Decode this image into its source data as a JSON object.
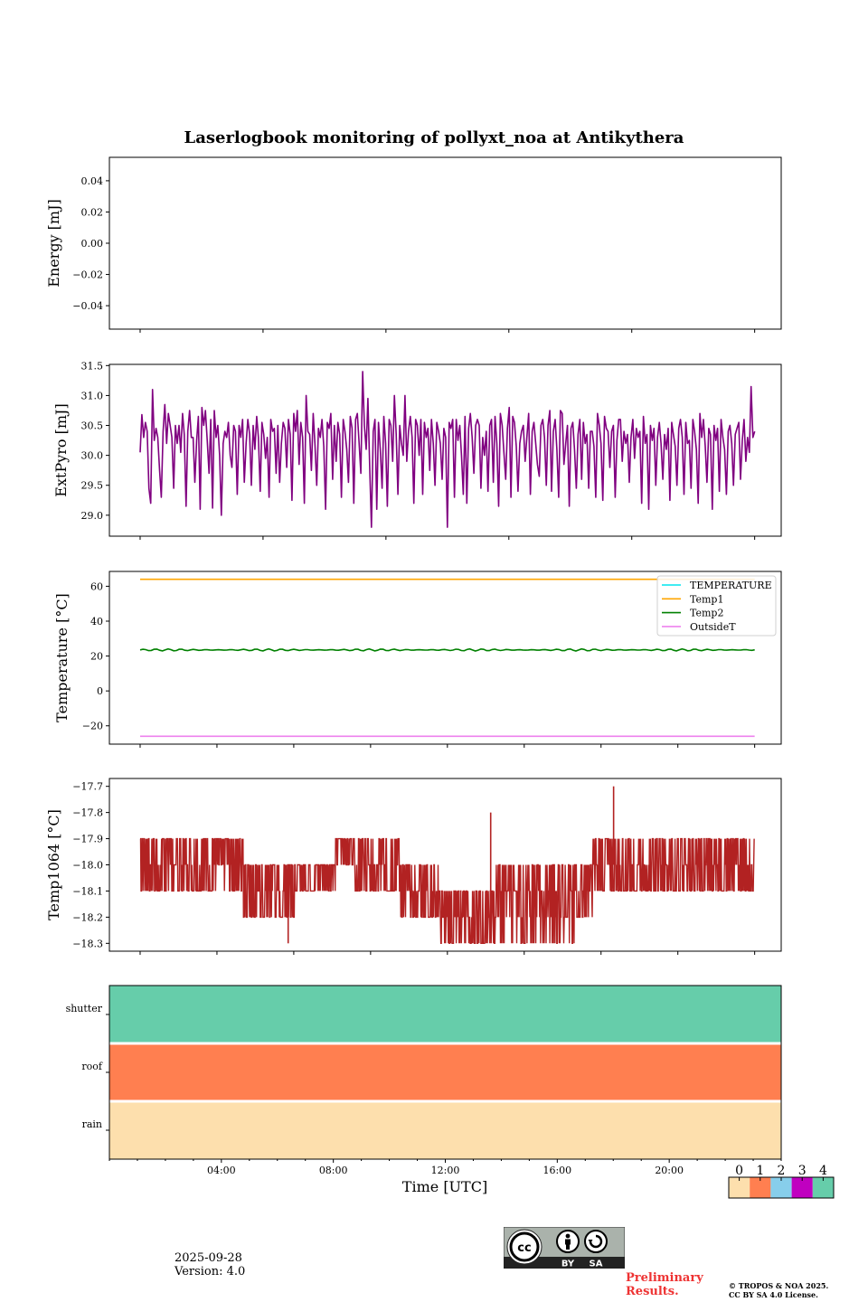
{
  "figure": {
    "title": "Laserlogbook monitoring of pollyxt_noa at Antikythera",
    "xlabel": "Time [UTC]",
    "footer": {
      "date": "2025-09-28",
      "version": "Version: 4.0",
      "preliminary_line1": "Preliminary",
      "preliminary_line2": "Results.",
      "preliminary_color": "#ee3333",
      "copyright_line1": "© TROPOS & NOA 2025.",
      "copyright_line2": "CC BY SA 4.0 License.",
      "cc_badge": {
        "icons": [
          "cc-icon",
          "by-person-icon",
          "sa-share-alike-icon"
        ],
        "by_label": "BY",
        "sa_label": "SA"
      }
    }
  },
  "chart_data": [
    {
      "type": "line",
      "name": "energy",
      "ylabel": "Energy [mJ]",
      "ylim": [
        -0.055,
        0.055
      ],
      "yticks": [
        0.04,
        0.02,
        0.0,
        -0.02,
        -0.04
      ],
      "ytick_labels": [
        "0.04",
        "0.02",
        "0.00",
        "−0.02",
        "−0.04"
      ],
      "xlim_hours": [
        0.5,
        24.55
      ],
      "xticks_hours": [
        1.6,
        6.0,
        10.4,
        14.8,
        19.2,
        23.6
      ],
      "series": []
    },
    {
      "type": "line",
      "name": "extpyro",
      "ylabel": "ExtPyro [mJ]",
      "ylim": [
        28.65,
        31.52
      ],
      "yticks": [
        31.5,
        31.0,
        30.5,
        30.0,
        29.5,
        29.0
      ],
      "ytick_labels": [
        "31.5",
        "31.0",
        "30.5",
        "30.0",
        "29.5",
        "29.0"
      ],
      "xlim_hours": [
        0.5,
        24.55
      ],
      "xticks_hours": [
        1.6,
        6.0,
        10.4,
        14.8,
        19.2,
        23.6
      ],
      "series": [
        {
          "name": "ExtPyro",
          "color": "#800080",
          "x_range_hours": [
            1.6,
            23.6
          ],
          "summary": {
            "typical_range": [
              29.1,
              30.8
            ],
            "mean_approx": 30.2,
            "min_approx": 28.8,
            "max_approx": 31.4
          },
          "values": [
            30.05,
            30.68,
            30.3,
            30.55,
            30.4,
            29.45,
            29.2,
            31.1,
            30.25,
            30.45,
            30.3,
            29.75,
            29.3,
            30.4,
            30.85,
            30.2,
            30.7,
            30.5,
            30.3,
            29.45,
            30.5,
            30.2,
            30.5,
            30.05,
            30.7,
            30.35,
            29.15,
            30.4,
            30.75,
            30.3,
            30.3,
            29.55,
            30.25,
            30.65,
            29.1,
            30.8,
            30.5,
            30.75,
            30.25,
            29.7,
            30.6,
            29.12,
            30.75,
            30.3,
            30.5,
            30.0,
            29.0,
            30.2,
            30.4,
            30.3,
            30.55,
            30.0,
            29.8,
            30.5,
            30.4,
            29.35,
            30.5,
            30.3,
            30.6,
            29.55,
            30.2,
            30.6,
            30.35,
            29.5,
            30.5,
            30.1,
            30.65,
            30.3,
            29.4,
            30.55,
            30.35,
            29.95,
            30.3,
            29.3,
            30.6,
            30.4,
            30.45,
            29.7,
            30.5,
            29.55,
            30.2,
            30.55,
            30.45,
            29.8,
            30.6,
            30.35,
            29.25,
            30.7,
            30.4,
            30.75,
            29.85,
            30.55,
            30.3,
            29.2,
            31.0,
            30.4,
            30.35,
            29.75,
            30.7,
            30.2,
            29.5,
            30.45,
            30.3,
            30.6,
            30.15,
            29.1,
            30.55,
            30.45,
            30.7,
            29.6,
            30.5,
            29.9,
            30.55,
            30.35,
            29.3,
            30.6,
            30.4,
            30.1,
            29.55,
            30.65,
            30.45,
            29.2,
            30.6,
            30.7,
            30.2,
            29.7,
            31.4,
            30.5,
            30.1,
            30.95,
            29.8,
            28.8,
            30.4,
            30.6,
            29.1,
            30.55,
            30.1,
            29.45,
            30.65,
            30.2,
            29.15,
            30.6,
            30.5,
            29.9,
            31.0,
            30.35,
            29.35,
            30.5,
            30.2,
            30.0,
            31.0,
            29.9,
            30.4,
            30.65,
            30.3,
            29.2,
            30.6,
            30.5,
            30.0,
            30.6,
            29.35,
            30.55,
            30.3,
            30.45,
            29.75,
            30.6,
            30.2,
            29.5,
            30.55,
            30.4,
            30.2,
            29.6,
            30.45,
            30.3,
            28.8,
            30.55,
            30.45,
            30.6,
            29.3,
            30.6,
            30.25,
            30.5,
            30.0,
            29.35,
            30.65,
            29.2,
            30.45,
            30.7,
            30.3,
            29.7,
            30.5,
            30.6,
            30.5,
            29.45,
            30.3,
            30.0,
            30.4,
            29.4,
            30.5,
            30.6,
            29.55,
            30.65,
            30.2,
            29.15,
            30.7,
            30.5,
            30.05,
            29.6,
            30.45,
            30.8,
            29.3,
            30.65,
            30.55,
            30.15,
            29.4,
            30.2,
            30.4,
            30.5,
            29.9,
            30.3,
            30.7,
            29.35,
            30.4,
            30.55,
            30.2,
            29.85,
            29.65,
            30.5,
            30.6,
            30.3,
            29.5,
            30.5,
            30.75,
            29.4,
            30.4,
            30.6,
            30.1,
            29.3,
            30.75,
            30.7,
            29.85,
            30.2,
            30.5,
            29.15,
            30.45,
            30.55,
            30.1,
            29.45,
            30.35,
            30.6,
            29.6,
            30.55,
            30.2,
            30.35,
            29.45,
            30.4,
            30.4,
            30.15,
            29.3,
            30.7,
            30.5,
            30.2,
            29.25,
            30.65,
            30.45,
            30.4,
            29.8,
            30.4,
            30.5,
            29.3,
            30.25,
            30.6,
            30.6,
            29.9,
            30.4,
            30.2,
            30.35,
            29.55,
            30.3,
            30.6,
            29.95,
            30.45,
            30.3,
            30.4,
            29.2,
            30.65,
            30.2,
            30.35,
            29.1,
            30.5,
            30.25,
            30.45,
            29.5,
            30.3,
            30.55,
            30.2,
            29.6,
            30.35,
            30.1,
            30.45,
            29.25,
            30.55,
            30.35,
            30.15,
            29.5,
            30.45,
            30.6,
            30.3,
            29.35,
            30.55,
            30.2,
            30.25,
            29.45,
            30.6,
            30.4,
            30.1,
            29.2,
            30.7,
            30.3,
            30.6,
            30.15,
            29.55,
            30.45,
            30.35,
            29.1,
            30.5,
            30.25,
            30.45,
            29.4,
            30.6,
            30.3,
            30.1,
            29.35,
            30.4,
            30.5,
            30.2,
            29.5,
            30.35,
            30.45,
            30.55,
            29.6,
            30.25,
            30.6,
            29.9,
            30.3,
            30.05,
            31.15,
            30.3,
            30.4
          ]
        }
      ]
    },
    {
      "type": "line",
      "name": "temperature",
      "ylabel": "Temperature [°C]",
      "ylim": [
        -30.5,
        68.5
      ],
      "yticks": [
        60,
        40,
        20,
        0,
        -20
      ],
      "ytick_labels": [
        "60",
        "40",
        "20",
        "0",
        "−20"
      ],
      "xlim_hours": [
        0.5,
        24.55
      ],
      "xticks_hours": [
        1.6,
        4.35,
        7.1,
        9.85,
        12.6,
        15.35,
        18.1,
        20.85,
        23.6
      ],
      "legend": {
        "position": "top-right"
      },
      "series": [
        {
          "name": "TEMPERATURE",
          "color": "#00e5ee",
          "values": []
        },
        {
          "name": "Temp1",
          "color": "#ffa500",
          "x_range_hours": [
            1.6,
            23.6
          ],
          "constant": 64.0
        },
        {
          "name": "Temp2",
          "color": "#008000",
          "x_range_hours": [
            1.6,
            23.6
          ],
          "mean": 23.5,
          "oscillation_amplitude": 0.6
        },
        {
          "name": "OutsideT",
          "color": "#ee82ee",
          "x_range_hours": [
            1.6,
            23.6
          ],
          "constant": -26.0
        }
      ]
    },
    {
      "type": "line",
      "name": "temp1064",
      "ylabel": "Temp1064 [°C]",
      "ylim": [
        -18.33,
        -17.67
      ],
      "yticks": [
        -17.7,
        -17.8,
        -17.9,
        -18.0,
        -18.1,
        -18.2,
        -18.3
      ],
      "ytick_labels": [
        "−17.7",
        "−17.8",
        "−17.9",
        "−18.0",
        "−18.1",
        "−18.2",
        "−18.3"
      ],
      "xlim_hours": [
        0.5,
        24.55
      ],
      "xticks_hours": [
        1.6,
        4.35,
        7.1,
        9.85,
        12.6,
        15.35,
        18.1,
        20.85,
        23.6
      ],
      "series": [
        {
          "name": "Temp1064",
          "color": "#b22222",
          "x_range_hours": [
            1.6,
            23.6
          ],
          "segments": [
            {
              "from_hour": 1.6,
              "to_hour": 3.9,
              "low": -18.1,
              "high": -17.9,
              "base": -18.0
            },
            {
              "from_hour": 3.9,
              "to_hour": 5.3,
              "low": -18.1,
              "high": -17.9,
              "base": -18.0
            },
            {
              "from_hour": 5.3,
              "to_hour": 7.2,
              "low": -18.2,
              "high": -18.0,
              "base": -18.1
            },
            {
              "from_hour": 7.2,
              "to_hour": 8.6,
              "low": -18.1,
              "high": -18.0,
              "base": -18.0
            },
            {
              "from_hour": 8.6,
              "to_hour": 9.3,
              "low": -18.0,
              "high": -17.9,
              "base": -17.9
            },
            {
              "from_hour": 9.3,
              "to_hour": 10.9,
              "low": -18.1,
              "high": -17.9,
              "base": -18.0
            },
            {
              "from_hour": 10.9,
              "to_hour": 12.3,
              "low": -18.2,
              "high": -18.0,
              "base": -18.1
            },
            {
              "from_hour": 12.3,
              "to_hour": 14.3,
              "low": -18.3,
              "high": -18.1,
              "base": -18.2
            },
            {
              "from_hour": 14.3,
              "to_hour": 17.2,
              "low": -18.3,
              "high": -18.0,
              "base": -18.1
            },
            {
              "from_hour": 17.2,
              "to_hour": 17.8,
              "low": -18.2,
              "high": -18.0,
              "base": -18.1
            },
            {
              "from_hour": 17.8,
              "to_hour": 23.6,
              "low": -18.1,
              "high": -17.9,
              "base": -18.0
            }
          ],
          "spikes": [
            {
              "hour": 6.9,
              "value": -18.3
            },
            {
              "hour": 14.15,
              "value": -17.8
            },
            {
              "hour": 18.55,
              "value": -17.7
            }
          ]
        }
      ]
    },
    {
      "type": "heatmap",
      "name": "status",
      "rows": [
        "shutter",
        "roof",
        "rain"
      ],
      "values": [
        4,
        1,
        0
      ],
      "xlim_hours": [
        0,
        24
      ],
      "xticks_major_hours": [
        4,
        8,
        12,
        16,
        20
      ],
      "xtick_labels": [
        "04:00",
        "08:00",
        "12:00",
        "16:00",
        "20:00"
      ],
      "xlabel": "Time [UTC]",
      "colorbar": {
        "ticks": [
          "0",
          "1",
          "2",
          "3",
          "4"
        ],
        "colors": [
          "#fddfad",
          "#ff7f50",
          "#87ceeb",
          "#c000c0",
          "#66cdaa"
        ]
      }
    }
  ]
}
